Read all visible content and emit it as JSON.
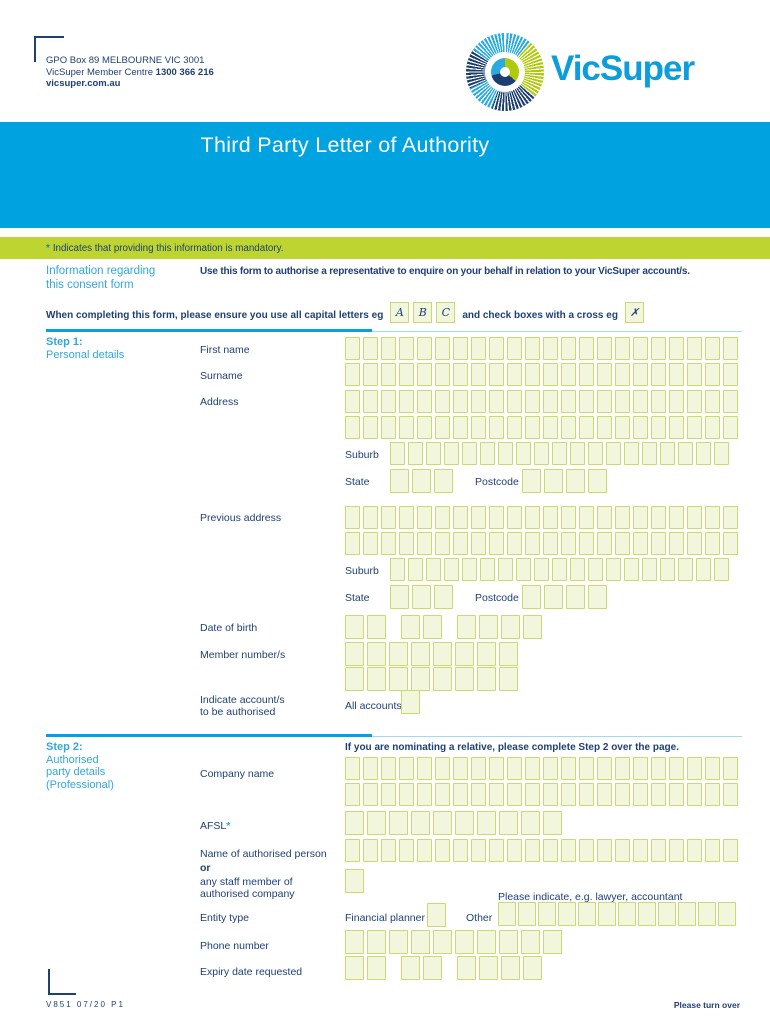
{
  "header": {
    "address_line": "GPO Box 89 MELBOURNE VIC 3001",
    "member_centre_label": "VicSuper Member Centre",
    "member_centre_phone": "1300 366 216",
    "website": "vicsuper.com.au",
    "brand": "VicSuper"
  },
  "banner": {
    "title": "Third Party Letter of Authority"
  },
  "mandatory_bar": {
    "asterisk": "*",
    "text": "Indicates that providing this information is mandatory."
  },
  "intro": {
    "heading_line1": "Information regarding",
    "heading_line2": "this consent form",
    "body": "Use this form to authorise a representative to enquire on your behalf in relation to your VicSuper account/s.",
    "instruction_prefix": "When completing this form, please ensure you use all capital letters eg",
    "sample_letters": [
      "A",
      "B",
      "C"
    ],
    "instruction_suffix": "and check boxes with a cross eg",
    "sample_cross": "✗"
  },
  "step1": {
    "label": "Step 1:",
    "sublabel": "Personal details",
    "first_name_label": "First name",
    "surname_label": "Surname",
    "address_label": "Address",
    "suburb_label": "Suburb",
    "state_label": "State",
    "postcode_label": "Postcode",
    "previous_address_label": "Previous address",
    "dob_label": "Date of birth",
    "member_label": "Member number/s",
    "indicate_line1": "Indicate account/s",
    "indicate_line2": "to be authorised",
    "all_accounts_label": "All accounts"
  },
  "step2": {
    "label": "Step 2:",
    "sublabel_line1": "Authorised",
    "sublabel_line2": "party details",
    "sublabel_line3": "(Professional)",
    "note": "If you are nominating a relative, please complete Step 2 over the page.",
    "company_label": "Company name",
    "afsl_label": "AFSL",
    "afsl_asterisk": "*",
    "person_label": "Name of authorised person",
    "or_label": "or",
    "staff_line1": "any staff member of",
    "staff_line2": "authorised company",
    "please_indicate": "Please indicate, e.g. lawyer, accountant",
    "entity_label": "Entity type",
    "financial_planner_label": "Financial planner",
    "other_label": "Other",
    "phone_label": "Phone number",
    "expiry_label": "Expiry date requested"
  },
  "boxes": {
    "name_row": 22,
    "suburb_row": 19,
    "state_row": 3,
    "postcode_row": 4,
    "dob_groups": [
      2,
      2,
      4
    ],
    "member_row": 8,
    "afsl_row": 10,
    "person_row": 22,
    "other_row": 12,
    "phone_row": 10,
    "expiry_groups": [
      2,
      2,
      4
    ]
  },
  "footer": {
    "code": "V851 07/20 P1",
    "turn_over": "Please turn over"
  },
  "colors": {
    "banner_blue": "#00A3E0",
    "bar_green": "#BED431",
    "navy_text": "#1F4074",
    "light_blue_text": "#33A7DE",
    "box_fill": "#F1F6DC",
    "box_border": "#C9DA70",
    "logo_green": "#AFCA0B",
    "logo_navy": "#1C3E70",
    "logo_light_blue": "#29ABE2"
  }
}
